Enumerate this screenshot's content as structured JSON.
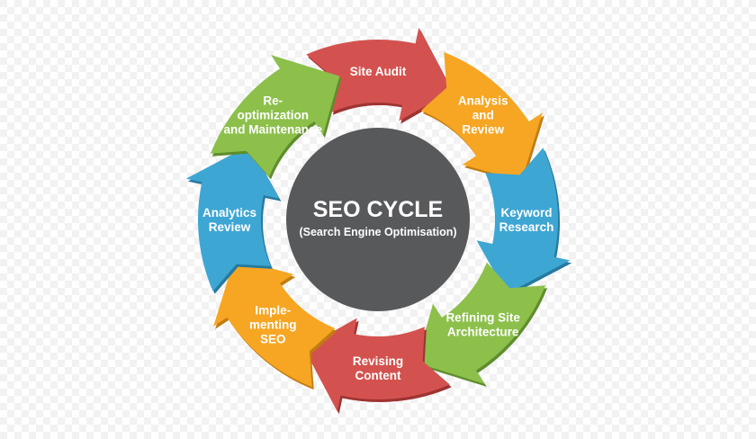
{
  "center": {
    "title": "SEO CYCLE",
    "subtitle": "(Search Engine Optimisation)",
    "color": "#58595b"
  },
  "steps": [
    {
      "lines": [
        "Site Audit"
      ],
      "color": "#d3524f",
      "shadow": "#9e3432"
    },
    {
      "lines": [
        "Analysis",
        "and",
        "Review"
      ],
      "color": "#f6a623",
      "shadow": "#c27c10"
    },
    {
      "lines": [
        "Keyword",
        "Research"
      ],
      "color": "#3ea6d3",
      "shadow": "#257a9f"
    },
    {
      "lines": [
        "Refining Site",
        "Architecture"
      ],
      "color": "#8cc04b",
      "shadow": "#5f8d2c"
    },
    {
      "lines": [
        "Revising",
        "Content"
      ],
      "color": "#d3524f",
      "shadow": "#9e3432"
    },
    {
      "lines": [
        "Imple-",
        "menting",
        "SEO"
      ],
      "color": "#f6a623",
      "shadow": "#c27c10"
    },
    {
      "lines": [
        "Analytics",
        "Review"
      ],
      "color": "#3ea6d3",
      "shadow": "#257a9f"
    },
    {
      "lines": [
        "Re-",
        "optimization",
        "and Maintenance"
      ],
      "color": "#8cc04b",
      "shadow": "#5f8d2c"
    }
  ]
}
